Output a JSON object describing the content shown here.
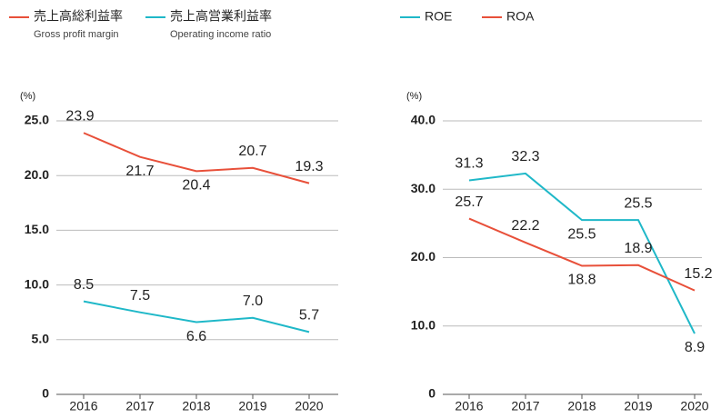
{
  "chart_data": [
    {
      "type": "line",
      "y_unit": "(%)",
      "categories": [
        "2016",
        "2017",
        "2018",
        "2019",
        "2020"
      ],
      "ylim": [
        0,
        25
      ],
      "yticks": [
        0,
        {
          "value": 5,
          "label": "5.0"
        },
        {
          "value": 10,
          "label": "10.0"
        },
        {
          "value": 15,
          "label": "15.0"
        },
        {
          "value": 20,
          "label": "20.0"
        },
        {
          "value": 25,
          "label": "25.0"
        }
      ],
      "grid": true,
      "series": [
        {
          "name": "売上高総利益率",
          "name_en": "Gross profit margin",
          "color": "#e8503a",
          "values": [
            23.9,
            21.7,
            20.4,
            20.7,
            19.3
          ],
          "value_labels": [
            "23.9",
            "21.7",
            "20.4",
            "20.7",
            "19.3"
          ]
        },
        {
          "name": "売上高営業利益率",
          "name_en": "Operating income ratio",
          "color": "#1fb8c8",
          "values": [
            8.5,
            7.5,
            6.6,
            7,
            5.7
          ],
          "value_labels": [
            "8.5",
            "7.5",
            "6.6",
            "7.0",
            "5.7"
          ]
        }
      ]
    },
    {
      "type": "line",
      "y_unit": "(%)",
      "categories": [
        "2016",
        "2017",
        "2018",
        "2019",
        "2020"
      ],
      "ylim": [
        0,
        40
      ],
      "yticks": [
        0,
        {
          "value": 10,
          "label": "10.0"
        },
        {
          "value": 20,
          "label": "20.0"
        },
        {
          "value": 30,
          "label": "30.0"
        },
        {
          "value": 40,
          "label": "40.0"
        }
      ],
      "grid": true,
      "series": [
        {
          "name": "ROE",
          "color": "#1fb8c8",
          "values": [
            31.3,
            32.3,
            25.5,
            25.5,
            8.9
          ],
          "value_labels": [
            "31.3",
            "32.3",
            "25.5",
            "25.5",
            "8.9"
          ]
        },
        {
          "name": "ROA",
          "color": "#e8503a",
          "values": [
            25.7,
            22.2,
            18.8,
            18.9,
            15.2
          ],
          "value_labels": [
            "25.7",
            "22.2",
            "18.8",
            "18.9",
            "15.2"
          ]
        }
      ]
    }
  ]
}
